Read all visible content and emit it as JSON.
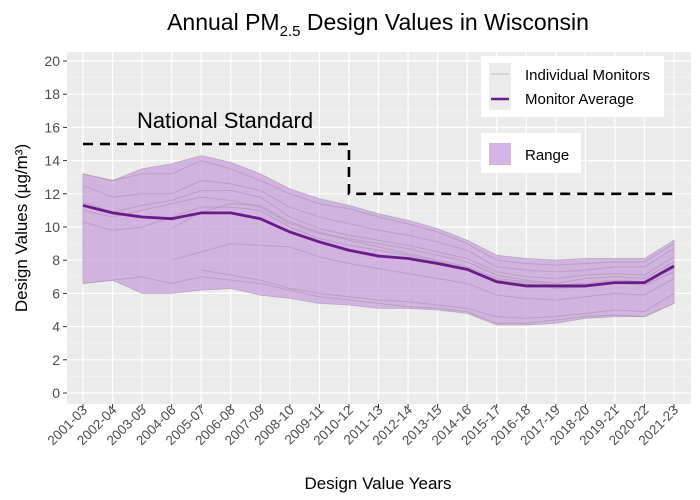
{
  "chart_data": {
    "type": "line",
    "title": {
      "main": "Annual PM",
      "subscript": "2.5",
      "rest": " Design Values in Wisconsin"
    },
    "xlabel": "Design Value Years",
    "ylabel": "Design Values (µg/m³)",
    "ylim": [
      0,
      20
    ],
    "yticks": [
      0,
      2,
      4,
      6,
      8,
      10,
      12,
      14,
      16,
      18,
      20
    ],
    "grid": true,
    "legend_position": "top-right",
    "categories": [
      "2001-03",
      "2002-04",
      "2003-05",
      "2004-06",
      "2005-07",
      "2006-08",
      "2007-09",
      "2008-10",
      "2009-11",
      "2010-12",
      "2011-13",
      "2012-14",
      "2013-15",
      "2014-16",
      "2015-17",
      "2016-18",
      "2017-19",
      "2018-20",
      "2019-21",
      "2020-22",
      "2021-23"
    ],
    "series": [
      {
        "name": "Monitor Average",
        "color": "#6A1B8A",
        "values": [
          11.3,
          10.85,
          10.6,
          10.5,
          10.85,
          10.85,
          10.5,
          9.7,
          9.1,
          8.6,
          8.25,
          8.1,
          7.8,
          7.45,
          6.7,
          6.45,
          6.45,
          6.45,
          6.65,
          6.65,
          7.65
        ]
      },
      {
        "name": "Range",
        "color": "#C9A0DC",
        "max": [
          13.2,
          12.8,
          13.5,
          13.8,
          14.3,
          13.9,
          13.2,
          12.3,
          11.7,
          11.3,
          10.8,
          10.4,
          9.9,
          9.2,
          8.3,
          8.1,
          8.0,
          8.1,
          8.1,
          8.1,
          9.2
        ],
        "min": [
          6.6,
          6.8,
          6.0,
          6.0,
          6.2,
          6.3,
          5.9,
          5.7,
          5.4,
          5.3,
          5.1,
          5.1,
          5.0,
          4.8,
          4.1,
          4.1,
          4.2,
          4.5,
          4.6,
          4.6,
          5.4
        ]
      }
    ],
    "individual_monitors": {
      "name": "Individual Monitors",
      "color": "#A593A8",
      "lines": [
        [
          13.2,
          12.8,
          13.2,
          13.2,
          14.0,
          13.5,
          12.8,
          12.0,
          11.4,
          11.1,
          10.6,
          10.2,
          9.7,
          9.0,
          8.0,
          7.8,
          7.7,
          7.8,
          7.9,
          7.9,
          9.0
        ],
        [
          12.5,
          11.8,
          12.0,
          12.0,
          12.8,
          12.6,
          12.2,
          11.2,
          10.6,
          10.2,
          9.8,
          9.5,
          9.1,
          8.6,
          7.6,
          7.4,
          7.3,
          7.4,
          7.6,
          7.6,
          8.7
        ],
        [
          11.5,
          10.9,
          11.3,
          11.6,
          12.2,
          12.2,
          11.8,
          10.6,
          9.9,
          9.5,
          9.2,
          8.9,
          8.5,
          8.1,
          7.3,
          7.0,
          6.9,
          7.1,
          7.2,
          7.1,
          8.2
        ],
        [
          11.0,
          10.6,
          11.0,
          11.4,
          11.8,
          11.6,
          11.2,
          10.2,
          9.6,
          9.3,
          9.0,
          8.7,
          8.3,
          7.9,
          7.1,
          6.8,
          6.6,
          6.9,
          7.0,
          6.9,
          7.9
        ],
        [
          null,
          null,
          null,
          9.9,
          10.9,
          11.4,
          11.3,
          10.3,
          9.7,
          9.2,
          8.8,
          8.4,
          8.0,
          7.6,
          6.9,
          6.7,
          6.5,
          6.6,
          6.8,
          6.7,
          7.5
        ],
        [
          10.3,
          9.8,
          10.0,
          10.6,
          11.2,
          11.2,
          11.0,
          10.0,
          9.3,
          8.9,
          8.6,
          8.3,
          7.9,
          7.5,
          6.8,
          6.6,
          6.3,
          6.4,
          6.6,
          6.5,
          7.3
        ],
        [
          null,
          null,
          null,
          8.0,
          8.5,
          9.0,
          8.9,
          8.8,
          8.2,
          7.8,
          7.5,
          7.2,
          6.9,
          6.6,
          5.9,
          5.7,
          5.6,
          5.8,
          6.0,
          5.9,
          6.9
        ],
        [
          null,
          null,
          null,
          null,
          7.4,
          7.1,
          6.8,
          6.3,
          6.0,
          5.8,
          5.6,
          5.5,
          5.3,
          5.1,
          4.6,
          4.5,
          4.6,
          4.8,
          5.0,
          4.9,
          6.0
        ],
        [
          6.6,
          6.8,
          7.0,
          6.6,
          7.0,
          6.8,
          6.6,
          6.2,
          5.8,
          5.6,
          5.4,
          5.2,
          5.1,
          4.9,
          4.2,
          4.2,
          4.4,
          4.6,
          4.7,
          4.6,
          5.4
        ]
      ]
    },
    "annotations": [
      {
        "label": "National Standard",
        "style": "dashed",
        "color": "#000000",
        "segments": [
          {
            "from": "2001-03",
            "to": "2010-12",
            "value": 15
          },
          {
            "from": "2010-12",
            "to": "2021-23",
            "value": 12
          }
        ]
      }
    ],
    "legend": {
      "items": [
        "Individual Monitors",
        "Monitor Average"
      ],
      "range_label": "Range"
    }
  }
}
